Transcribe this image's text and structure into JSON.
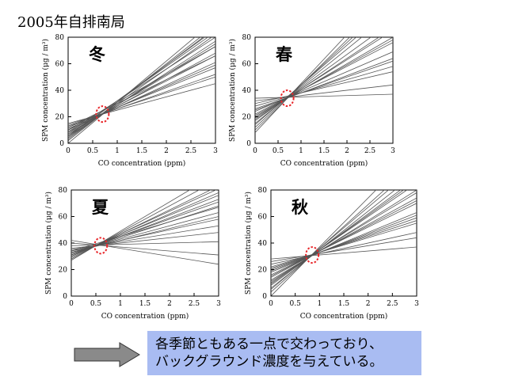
{
  "page_title": "2005年自排南局",
  "note": {
    "line1": "各季節ともある一点で交わっており、",
    "line2": "バックグラウンド濃度を与えている。"
  },
  "colors": {
    "line": "#555555",
    "marker": "#e8262a",
    "note_bg": "#a9bcf2",
    "arrow": "#8a8a8a"
  },
  "chart_data": [
    {
      "type": "line",
      "title": "冬",
      "xlabel": "CO concentration (ppm)",
      "ylabel": "SPM concentration (μg / m³)",
      "xlim": [
        0,
        3
      ],
      "ylim": [
        0,
        80
      ],
      "xticks": [
        "0",
        "0.5",
        "1",
        "1.5",
        "2",
        "2.5",
        "3"
      ],
      "yticks": [
        "0",
        "20",
        "40",
        "60",
        "80"
      ],
      "grid": false,
      "intersection": {
        "x": 0.7,
        "y": 22
      },
      "lines": [
        {
          "intercept": 0,
          "slope": 31
        },
        {
          "intercept": 2,
          "slope": 29
        },
        {
          "intercept": 4,
          "slope": 26
        },
        {
          "intercept": 5,
          "slope": 24
        },
        {
          "intercept": 6,
          "slope": 23
        },
        {
          "intercept": 7,
          "slope": 22
        },
        {
          "intercept": 8,
          "slope": 20
        },
        {
          "intercept": 9,
          "slope": 19
        },
        {
          "intercept": 10,
          "slope": 17
        },
        {
          "intercept": 11,
          "slope": 16
        },
        {
          "intercept": 12,
          "slope": 15
        },
        {
          "intercept": 13,
          "slope": 13
        },
        {
          "intercept": 14,
          "slope": 12
        },
        {
          "intercept": 15,
          "slope": 10
        },
        {
          "intercept": 6,
          "slope": 26
        },
        {
          "intercept": 3,
          "slope": 28
        },
        {
          "intercept": 10,
          "slope": 21
        },
        {
          "intercept": 8,
          "slope": 24
        },
        {
          "intercept": 12,
          "slope": 18
        },
        {
          "intercept": 5,
          "slope": 27
        }
      ]
    },
    {
      "type": "line",
      "title": "春",
      "xlabel": "CO concentration (ppm)",
      "ylabel": "SPM concentration (μg / m³)",
      "xlim": [
        0,
        3
      ],
      "ylim": [
        0,
        80
      ],
      "xticks": [
        "0",
        "0.5",
        "1",
        "1.5",
        "2",
        "2.5",
        "3"
      ],
      "yticks": [
        "0",
        "20",
        "40",
        "60",
        "80"
      ],
      "grid": false,
      "intersection": {
        "x": 0.7,
        "y": 34
      },
      "lines": [
        {
          "intercept": 8,
          "slope": 37
        },
        {
          "intercept": 12,
          "slope": 32
        },
        {
          "intercept": 15,
          "slope": 28
        },
        {
          "intercept": 18,
          "slope": 23
        },
        {
          "intercept": 20,
          "slope": 20
        },
        {
          "intercept": 22,
          "slope": 18
        },
        {
          "intercept": 24,
          "slope": 15
        },
        {
          "intercept": 26,
          "slope": 12
        },
        {
          "intercept": 28,
          "slope": 10
        },
        {
          "intercept": 30,
          "slope": 8
        },
        {
          "intercept": 32,
          "slope": 4
        },
        {
          "intercept": 34,
          "slope": 1
        },
        {
          "intercept": 14,
          "slope": 30
        },
        {
          "intercept": 17,
          "slope": 25
        },
        {
          "intercept": 21,
          "slope": 19
        },
        {
          "intercept": 10,
          "slope": 34
        },
        {
          "intercept": 25,
          "slope": 13
        },
        {
          "intercept": 19,
          "slope": 22
        }
      ]
    },
    {
      "type": "line",
      "title": "夏",
      "xlabel": "CO concentration (ppm)",
      "ylabel": "SPM concentration (μg / m³)",
      "xlim": [
        0,
        3
      ],
      "ylim": [
        0,
        80
      ],
      "xticks": [
        "0",
        "0.5",
        "1",
        "1.5",
        "2",
        "2.5",
        "3"
      ],
      "yticks": [
        "0",
        "20",
        "40",
        "60",
        "80"
      ],
      "grid": false,
      "intersection": {
        "x": 0.6,
        "y": 38
      },
      "lines": [
        {
          "intercept": 28,
          "slope": 20
        },
        {
          "intercept": 29,
          "slope": 18
        },
        {
          "intercept": 30,
          "slope": 16
        },
        {
          "intercept": 31,
          "slope": 14
        },
        {
          "intercept": 32,
          "slope": 12
        },
        {
          "intercept": 33,
          "slope": 10
        },
        {
          "intercept": 34,
          "slope": 8
        },
        {
          "intercept": 35,
          "slope": 6
        },
        {
          "intercept": 36,
          "slope": 4
        },
        {
          "intercept": 38,
          "slope": 1
        },
        {
          "intercept": 40,
          "slope": -3
        },
        {
          "intercept": 42,
          "slope": -6
        },
        {
          "intercept": 30,
          "slope": 17
        },
        {
          "intercept": 32,
          "slope": 13
        },
        {
          "intercept": 34,
          "slope": 11
        },
        {
          "intercept": 27,
          "slope": 22
        },
        {
          "intercept": 33,
          "slope": 9
        },
        {
          "intercept": 31,
          "slope": 15
        }
      ]
    },
    {
      "type": "line",
      "title": "秋",
      "xlabel": "CO concentration (ppm)",
      "ylabel": "SPM concentration (μg / m³)",
      "xlim": [
        0,
        3
      ],
      "ylim": [
        0,
        80
      ],
      "xticks": [
        "0",
        "0.5",
        "1",
        "1.5",
        "2",
        "2.5",
        "3"
      ],
      "yticks": [
        "0",
        "20",
        "40",
        "60",
        "80"
      ],
      "grid": false,
      "intersection": {
        "x": 0.85,
        "y": 31
      },
      "lines": [
        {
          "intercept": 0,
          "slope": 37
        },
        {
          "intercept": 5,
          "slope": 31
        },
        {
          "intercept": 8,
          "slope": 27
        },
        {
          "intercept": 10,
          "slope": 25
        },
        {
          "intercept": 12,
          "slope": 22
        },
        {
          "intercept": 14,
          "slope": 20
        },
        {
          "intercept": 16,
          "slope": 18
        },
        {
          "intercept": 18,
          "slope": 15
        },
        {
          "intercept": 20,
          "slope": 13
        },
        {
          "intercept": 22,
          "slope": 11
        },
        {
          "intercept": 24,
          "slope": 8
        },
        {
          "intercept": 26,
          "slope": 6
        },
        {
          "intercept": 28,
          "slope": 3
        },
        {
          "intercept": 6,
          "slope": 29
        },
        {
          "intercept": 11,
          "slope": 23
        },
        {
          "intercept": 15,
          "slope": 19
        },
        {
          "intercept": 19,
          "slope": 14
        },
        {
          "intercept": 3,
          "slope": 33
        },
        {
          "intercept": 21,
          "slope": 12
        },
        {
          "intercept": 9,
          "slope": 26
        }
      ]
    }
  ]
}
